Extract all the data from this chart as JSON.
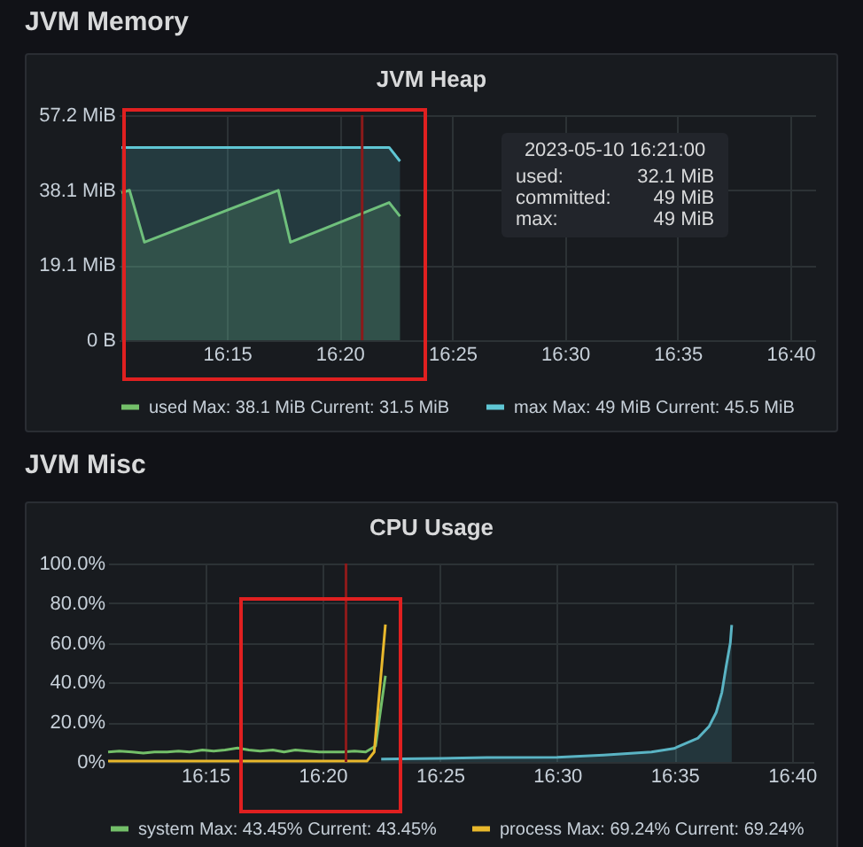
{
  "chart_data": [
    {
      "type": "area",
      "title": "JVM Memory",
      "subtitle": "JVM Heap",
      "grid": true,
      "legend": "bottom",
      "xlim": [
        16.17,
        16.685
      ],
      "xticks": [
        {
          "value": 16.25,
          "label": "16:15"
        },
        {
          "value": 16.3333,
          "label": "16:20"
        },
        {
          "value": 16.4167,
          "label": "16:25"
        },
        {
          "value": 16.5,
          "label": "16:30"
        },
        {
          "value": 16.5833,
          "label": "16:35"
        },
        {
          "value": 16.6667,
          "label": "16:40"
        }
      ],
      "ylim": [
        0,
        57.2
      ],
      "yticks": [
        {
          "value": 0,
          "label": "0 B"
        },
        {
          "value": 19.1,
          "label": "19.1 MiB"
        },
        {
          "value": 38.1,
          "label": "38.1 MiB"
        },
        {
          "value": 57.2,
          "label": "57.2 MiB"
        }
      ],
      "ref_lines": [
        {
          "axis": "x",
          "value": 16.35,
          "color": "#8b1a1a"
        }
      ],
      "annotations": [
        "2023-05-10 16:21:00",
        "used:",
        "32.1 MiB",
        "committed:",
        "49 MiB",
        "max:",
        "49 MiB"
      ],
      "series": [
        {
          "name": "used  Max: 38.1 MiB  Current: 31.5 MiB",
          "color": "#73bf69",
          "x": [
            16.172,
            16.178,
            16.189,
            16.288,
            16.297,
            16.37,
            16.378
          ],
          "values": [
            37.5,
            38.1,
            24.9,
            38.1,
            24.9,
            35,
            31.5
          ]
        },
        {
          "name": "max  Max: 49 MiB  Current: 45.5 MiB",
          "color": "#5fc6d4",
          "x": [
            16.172,
            16.37,
            16.378
          ],
          "values": [
            49,
            49,
            45.5
          ]
        }
      ]
    },
    {
      "type": "line",
      "title": "JVM Misc",
      "subtitle": "CPU Usage",
      "grid": true,
      "legend": "bottom",
      "xlim": [
        16.181,
        16.682
      ],
      "xticks": [
        {
          "value": 16.25,
          "label": "16:15"
        },
        {
          "value": 16.3333,
          "label": "16:20"
        },
        {
          "value": 16.4167,
          "label": "16:25"
        },
        {
          "value": 16.5,
          "label": "16:30"
        },
        {
          "value": 16.5833,
          "label": "16:35"
        },
        {
          "value": 16.6667,
          "label": "16:40"
        }
      ],
      "ylim": [
        0,
        100
      ],
      "yticks": [
        {
          "value": 0,
          "label": "0%"
        },
        {
          "value": 20,
          "label": "20.0%"
        },
        {
          "value": 40,
          "label": "40.0%"
        },
        {
          "value": 60,
          "label": "60.0%"
        },
        {
          "value": 80,
          "label": "80.0%"
        },
        {
          "value": 100,
          "label": "100.0%"
        }
      ],
      "ref_lines": [
        {
          "axis": "x",
          "value": 16.35,
          "color": "#8b1a1a"
        }
      ],
      "series": [
        {
          "name": "system  Max: 43.45%  Current: 43.45%",
          "color": "#73bf69",
          "x": [
            16.181,
            16.189,
            16.198,
            16.206,
            16.214,
            16.223,
            16.231,
            16.239,
            16.248,
            16.256,
            16.264,
            16.273,
            16.281,
            16.289,
            16.298,
            16.306,
            16.314,
            16.323,
            16.331,
            16.339,
            16.348,
            16.356,
            16.364,
            16.371,
            16.378
          ],
          "values": [
            5,
            5.5,
            5,
            4.5,
            5,
            5,
            5.5,
            5,
            6,
            5.5,
            6,
            7,
            6,
            5.5,
            6,
            5,
            6,
            5.5,
            5,
            5,
            5,
            5.5,
            5,
            8,
            43.45
          ]
        },
        {
          "name": "process  Max: 69.24%  Current: 69.24%",
          "color": "#e8b82c",
          "x": [
            16.181,
            16.3,
            16.365,
            16.37,
            16.378
          ],
          "values": [
            0.5,
            0.5,
            0.5,
            5,
            69.24
          ]
        },
        {
          "type": "area",
          "color": "#5ab4c4",
          "x": [
            16.375,
            16.417,
            16.45,
            16.5,
            16.533,
            16.567,
            16.583,
            16.6,
            16.608,
            16.613,
            16.617,
            16.62,
            16.623,
            16.624
          ],
          "values": [
            1.5,
            1.8,
            2.2,
            2.3,
            3.5,
            5,
            6.8,
            12,
            18,
            25,
            35,
            48,
            60,
            69
          ]
        }
      ]
    }
  ]
}
